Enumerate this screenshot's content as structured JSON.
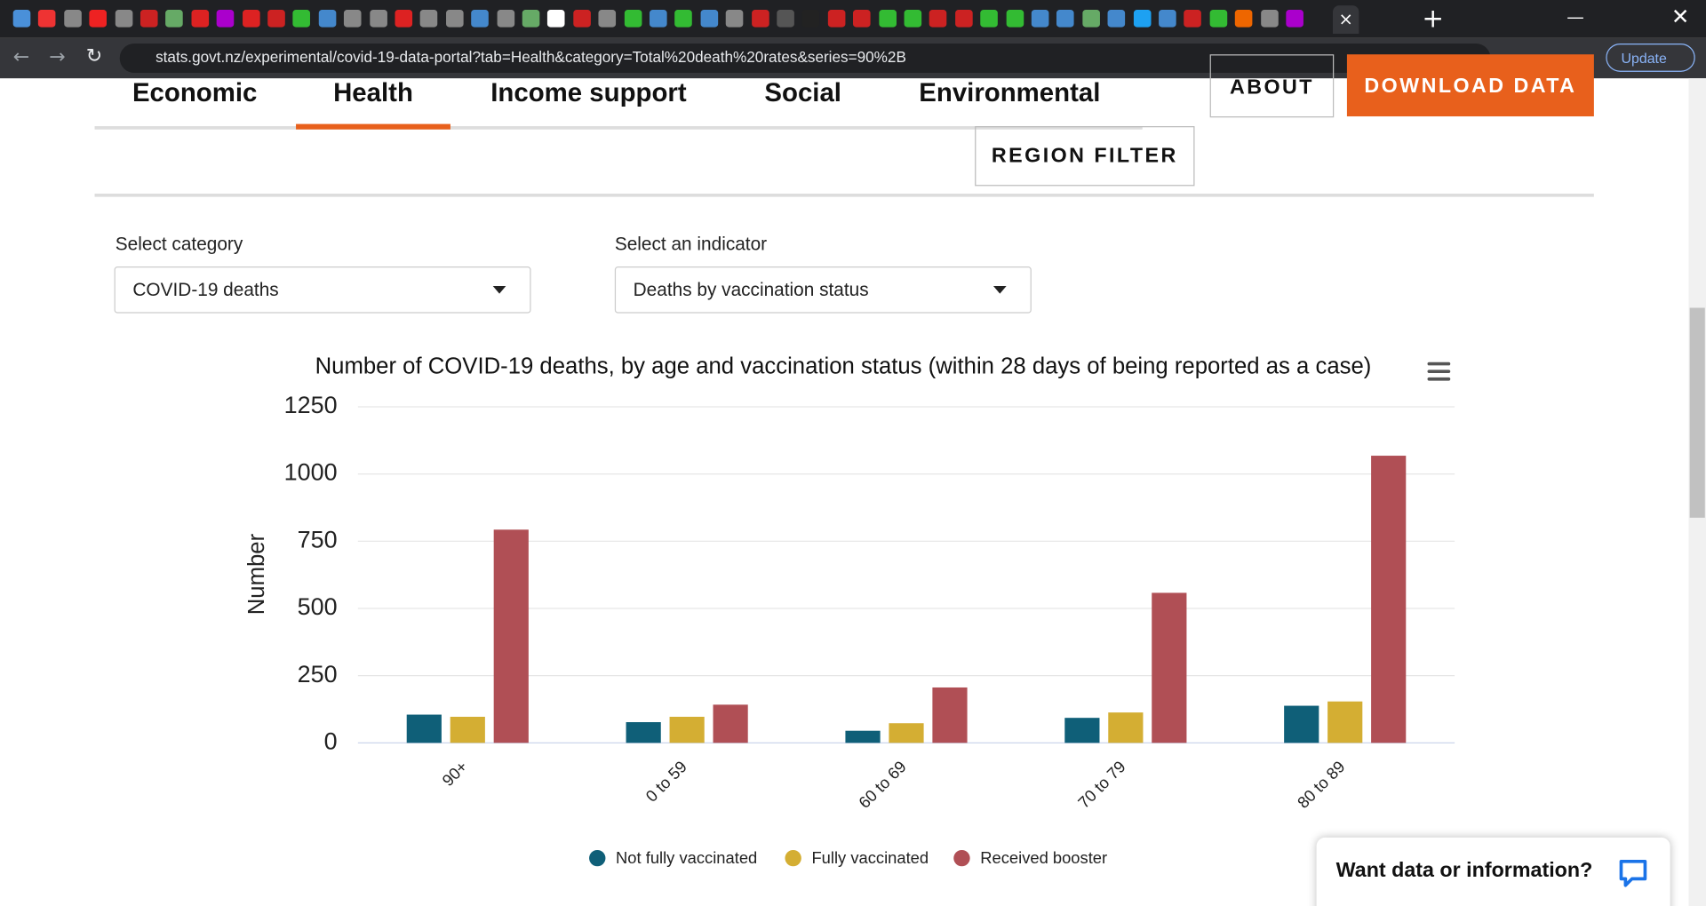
{
  "browser": {
    "url": "stats.govt.nz/experimental/covid-19-data-portal?tab=Health&category=Total%20death%20rates&series=90%2B",
    "update": "Update"
  },
  "nav": {
    "tabs": [
      "Economic",
      "Health",
      "Income support",
      "Social",
      "Environmental"
    ],
    "about": "ABOUT",
    "download": "DOWNLOAD DATA",
    "region": "REGION FILTER"
  },
  "filters": [
    {
      "label": "Select category",
      "value": "COVID-19 deaths"
    },
    {
      "label": "Select an indicator",
      "value": "Deaths by vaccination status"
    }
  ],
  "chat": "Want data or information?",
  "chart_data": {
    "type": "bar",
    "title": "Number of COVID-19 deaths, by age and vaccination status (within 28 days of being reported as a case)",
    "y_label": "Number",
    "categories": [
      "90+",
      "0 to 59",
      "60 to 69",
      "70 to 79",
      "80 to 89"
    ],
    "series": [
      {
        "name": "Not fully vaccinated",
        "color": "#0f5f78",
        "values": [
          105,
          77,
          45,
          93,
          138
        ]
      },
      {
        "name": "Fully vaccinated",
        "color": "#d4ae33",
        "values": [
          97,
          97,
          73,
          113,
          154
        ]
      },
      {
        "name": "Received booster",
        "color": "#b04f55",
        "values": [
          793,
          142,
          206,
          558,
          1068
        ]
      }
    ],
    "ylim": [
      0,
      1250
    ],
    "yticks": [
      0,
      250,
      500,
      750,
      1000,
      1250
    ],
    "grid": true
  }
}
